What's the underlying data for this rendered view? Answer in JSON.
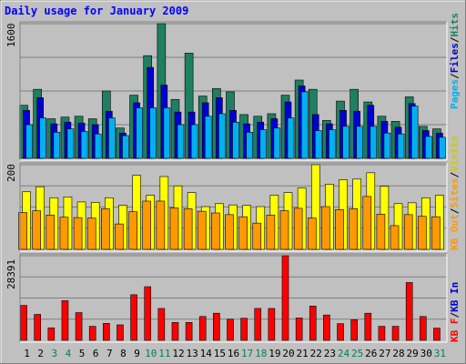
{
  "chart_data": {
    "type": "bar",
    "title": "Daily usage for January 2009",
    "categories": [
      "1",
      "2",
      "3",
      "4",
      "5",
      "6",
      "7",
      "8",
      "9",
      "10",
      "11",
      "12",
      "13",
      "14",
      "15",
      "16",
      "17",
      "18",
      "19",
      "20",
      "21",
      "22",
      "23",
      "24",
      "25",
      "26",
      "27",
      "28",
      "29",
      "30",
      "31"
    ],
    "weekend_days": [
      "3",
      "4",
      "10",
      "11",
      "17",
      "18",
      "24",
      "25",
      "31"
    ],
    "grid": true,
    "panels": [
      {
        "name": "pages-files-hits",
        "ymax_label": "1600",
        "ylim": [
          0,
          1600
        ],
        "right_label": [
          "Pages",
          "/",
          "Files",
          "/",
          "Hits"
        ],
        "series": [
          {
            "name": "Hits",
            "color": "#1e8060",
            "values": [
              630,
              820,
              470,
              490,
              500,
              470,
              800,
              360,
              750,
              1220,
              1600,
              700,
              1250,
              740,
              830,
              790,
              520,
              500,
              530,
              750,
              930,
              820,
              450,
              680,
              820,
              670,
              500,
              440,
              730,
              380,
              350
            ]
          },
          {
            "name": "Files",
            "color": "#0000d0",
            "values": [
              570,
              720,
              410,
              430,
              420,
              400,
              560,
              300,
              660,
              1080,
              870,
              550,
              550,
              660,
              720,
              570,
              410,
              430,
              470,
              670,
              860,
              520,
              410,
              570,
              560,
              630,
              440,
              370,
              650,
              330,
              300
            ]
          },
          {
            "name": "Pages",
            "color": "#00b0f0",
            "values": [
              400,
              480,
              310,
              350,
              320,
              290,
              480,
              270,
              600,
              600,
              600,
              400,
              400,
              500,
              530,
              430,
              310,
              340,
              360,
              480,
              790,
              330,
              340,
              380,
              380,
              380,
              300,
              290,
              620,
              260,
              250
            ]
          }
        ]
      },
      {
        "name": "visits-sites",
        "ymax_label": "200",
        "ylim": [
          0,
          200
        ],
        "right_label": [
          "Visits",
          "/",
          "Sites",
          "/",
          "KB Out"
        ],
        "series": [
          {
            "name": "Visits",
            "color": "#ffff00",
            "values": [
              136,
              148,
              122,
              124,
              112,
              111,
              122,
              104,
              175,
              128,
              172,
              150,
              134,
              101,
              108,
              105,
              104,
              101,
              128,
              134,
              145,
              200,
              154,
              164,
              166,
              181,
              149,
              108,
              110,
              122,
              128
            ]
          },
          {
            "name": "Sites",
            "color": "#ff9900",
            "values": [
              87,
              91,
              81,
              76,
              75,
              74,
              96,
              60,
              89,
              114,
              114,
              98,
              96,
              90,
              86,
              82,
              77,
              62,
              81,
              91,
              97,
              74,
              101,
              94,
              96,
              125,
              83,
              56,
              82,
              78,
              77
            ]
          }
        ]
      },
      {
        "name": "kb-in",
        "ymax_label": "28391",
        "ylim": [
          0,
          28391
        ],
        "right_label": [
          "KB F",
          "/",
          "KB In"
        ],
        "series": [
          {
            "name": "KB F",
            "color": "#ff0000",
            "values": [
              11700,
              8700,
              4200,
              13300,
              9300,
              4700,
              5700,
              5200,
              15300,
              18000,
              10700,
              6000,
              6000,
              8000,
              9100,
              7100,
              7400,
              10700,
              10700,
              28391,
              7500,
              11500,
              8500,
              5600,
              6900,
              9100,
              4700,
              4700,
              19400,
              8000,
              4100
            ]
          }
        ]
      }
    ]
  },
  "colors": {
    "title": "#0000ff",
    "weekday_label": "#000000",
    "weekend_label": "#00805c",
    "background": "#c0c0c0",
    "plot_background": "#c0c0c0",
    "grid": "#7f7f7f"
  }
}
